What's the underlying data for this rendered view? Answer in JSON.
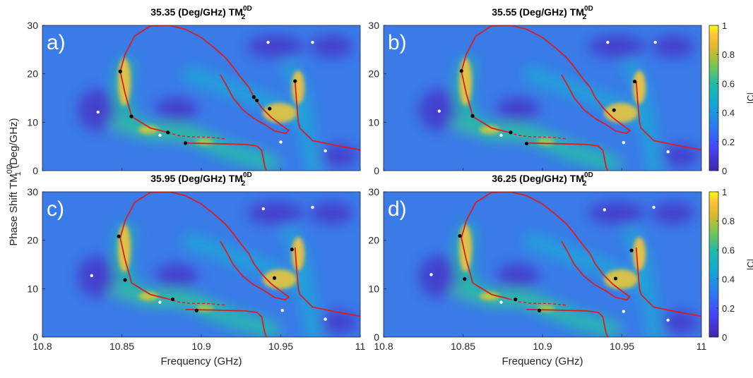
{
  "chart_data": {
    "type": "heatmap",
    "colormap": "parula",
    "xlabel": "Frequency (GHz)",
    "ylabel_text": "Phase Shift TM",
    "ylabel_sub": "1",
    "ylabel_sup": "0D",
    "ylabel_unit": " (Deg/GHz)",
    "xlim": [
      10.8,
      11
    ],
    "ylim": [
      0,
      30
    ],
    "xticks": [
      "10.8",
      "10.85",
      "10.9",
      "10.95",
      "11"
    ],
    "yticks": [
      "0",
      "10",
      "20",
      "30"
    ],
    "colorbar": {
      "label": "|C|",
      "range": [
        0,
        1
      ],
      "ticks": [
        "0",
        "0.2",
        "0.4",
        "0.6",
        "0.8",
        "1"
      ]
    },
    "panels": [
      {
        "letter": "a)",
        "title_value": "35.35 (Deg/GHz) TM",
        "title_sub": "2",
        "title_sup": "0D",
        "black_points": [
          [
            10.849,
            20.5
          ],
          [
            10.856,
            11.2
          ],
          [
            10.879,
            7.9
          ],
          [
            10.89,
            5.7
          ],
          [
            10.933,
            15.2
          ],
          [
            10.935,
            14.5
          ],
          [
            10.943,
            12.8
          ],
          [
            10.959,
            18.5
          ]
        ],
        "white_points": [
          [
            10.835,
            12.1
          ],
          [
            10.874,
            7.3
          ],
          [
            10.942,
            26.5
          ],
          [
            10.95,
            5.9
          ],
          [
            10.97,
            26.5
          ],
          [
            10.978,
            4.1
          ]
        ]
      },
      {
        "letter": "b)",
        "title_value": "35.55 (Deg/GHz) TM",
        "title_sub": "2",
        "title_sup": "0D",
        "black_points": [
          [
            10.849,
            20.6
          ],
          [
            10.856,
            11.3
          ],
          [
            10.88,
            7.9
          ],
          [
            10.89,
            5.6
          ],
          [
            10.945,
            12.5
          ],
          [
            10.958,
            18.4
          ]
        ],
        "white_points": [
          [
            10.835,
            12.3
          ],
          [
            10.874,
            7.3
          ],
          [
            10.941,
            26.5
          ],
          [
            10.951,
            5.8
          ],
          [
            10.971,
            26.5
          ],
          [
            10.979,
            3.9
          ]
        ]
      },
      {
        "letter": "c)",
        "title_value": "35.95 (Deg/GHz) TM",
        "title_sub": "2",
        "title_sup": "0D",
        "black_points": [
          [
            10.848,
            20.8
          ],
          [
            10.852,
            11.8
          ],
          [
            10.882,
            7.8
          ],
          [
            10.897,
            5.5
          ],
          [
            10.946,
            12.2
          ],
          [
            10.957,
            18.1
          ]
        ],
        "white_points": [
          [
            10.831,
            12.7
          ],
          [
            10.874,
            7.2
          ],
          [
            10.939,
            26.5
          ],
          [
            10.951,
            5.5
          ],
          [
            10.97,
            26.8
          ],
          [
            10.978,
            3.7
          ]
        ]
      },
      {
        "letter": "d)",
        "title_value": "36.25 (Deg/GHz) TM",
        "title_sub": "2",
        "title_sup": "0D",
        "black_points": [
          [
            10.848,
            20.9
          ],
          [
            10.851,
            12.0
          ],
          [
            10.883,
            7.8
          ],
          [
            10.898,
            5.5
          ],
          [
            10.946,
            12.1
          ],
          [
            10.956,
            17.9
          ]
        ],
        "white_points": [
          [
            10.83,
            12.9
          ],
          [
            10.874,
            7.2
          ],
          [
            10.939,
            26.3
          ],
          [
            10.951,
            5.3
          ],
          [
            10.97,
            26.8
          ],
          [
            10.979,
            3.5
          ]
        ]
      }
    ]
  }
}
